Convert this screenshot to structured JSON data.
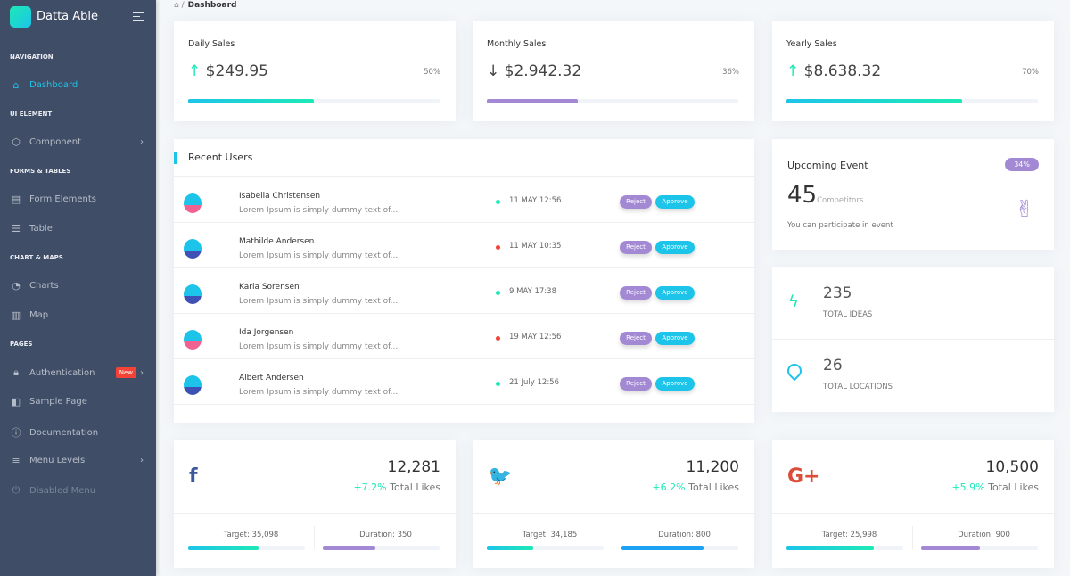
{
  "sidebar": {
    "brand": "Datta Able",
    "sections": [
      {
        "caption": "NAVIGATION",
        "items": [
          {
            "label": "Dashboard",
            "icon": "home-icon",
            "active": true
          }
        ]
      },
      {
        "caption": "UI ELEMENT",
        "items": [
          {
            "label": "Component",
            "icon": "box-icon",
            "chevron": true
          }
        ]
      },
      {
        "caption": "FORMS & TABLES",
        "items": [
          {
            "label": "Form Elements",
            "icon": "file-text-icon"
          },
          {
            "label": "Table",
            "icon": "server-icon"
          }
        ]
      },
      {
        "caption": "CHART & MAPS",
        "items": [
          {
            "label": "Charts",
            "icon": "pie-chart-icon"
          },
          {
            "label": "Map",
            "icon": "map-icon"
          }
        ]
      },
      {
        "caption": "PAGES",
        "items": [
          {
            "label": "Authentication",
            "icon": "lock-icon",
            "badge": "New",
            "chevron": true
          },
          {
            "label": "Sample Page",
            "icon": "sidebar-icon"
          },
          {
            "label": "Documentation",
            "icon": "help-circle-icon"
          },
          {
            "label": "Menu Levels",
            "icon": "menu-icon",
            "chevron": true
          },
          {
            "label": "Disabled Menu",
            "icon": "power-icon",
            "disabled": true
          }
        ]
      }
    ]
  },
  "breadcrumb": {
    "current": "Dashboard"
  },
  "sales": [
    {
      "title": "Daily Sales",
      "value": "$249.95",
      "trend": "up",
      "percent": "50%",
      "progress": 50,
      "color": "#1de9b6"
    },
    {
      "title": "Monthly Sales",
      "value": "$2.942.32",
      "trend": "down",
      "percent": "36%",
      "progress": 36,
      "color": "#a389d4"
    },
    {
      "title": "Yearly Sales",
      "value": "$8.638.32",
      "trend": "up",
      "percent": "70%",
      "progress": 70,
      "color": "#1de9b6"
    }
  ],
  "recent_users": {
    "title": "Recent Users",
    "reject": "Reject",
    "approve": "Approve",
    "rows": [
      {
        "name": "Isabella Christensen",
        "desc": "Lorem Ipsum is simply dummy text of...",
        "date": "11 MAY 12:56",
        "status": "#1de9b6"
      },
      {
        "name": "Mathilde Andersen",
        "desc": "Lorem Ipsum is simply dummy text of...",
        "date": "11 MAY 10:35",
        "status": "#f44236"
      },
      {
        "name": "Karla Sorensen",
        "desc": "Lorem Ipsum is simply dummy text of...",
        "date": "9 MAY 17:38",
        "status": "#1de9b6"
      },
      {
        "name": "Ida Jorgensen",
        "desc": "Lorem Ipsum is simply dummy text of...",
        "date": "19 MAY 12:56",
        "status": "#f44236"
      },
      {
        "name": "Albert Andersen",
        "desc": "Lorem Ipsum is simply dummy text of...",
        "date": "21 July 12:56",
        "status": "#1de9b6"
      }
    ]
  },
  "event": {
    "title": "Upcoming Event",
    "badge": "34%",
    "count": "45",
    "count_label": "Competitors",
    "note": "You can participate in event"
  },
  "stats": [
    {
      "value": "235",
      "label": "TOTAL IDEAS",
      "icon": "zap-icon"
    },
    {
      "value": "26",
      "label": "TOTAL LOCATIONS",
      "icon": "map-pin-icon"
    }
  ],
  "social": [
    {
      "network": "facebook",
      "icon": "f",
      "value": "12,281",
      "change": "+7.2%",
      "change_label": "Total Likes",
      "target": "Target: 35,098",
      "duration": "Duration: 350",
      "target_progress": 60,
      "duration_progress": 45,
      "color": "#3b5998"
    },
    {
      "network": "twitter",
      "icon": "🐦",
      "value": "11,200",
      "change": "+6.2%",
      "change_label": "Total Likes",
      "target": "Target: 34,185",
      "duration": "Duration: 800",
      "target_progress": 40,
      "duration_progress": 70,
      "color": "#1da1f2"
    },
    {
      "network": "google-plus",
      "icon": "G+",
      "value": "10,500",
      "change": "+5.9%",
      "change_label": "Total Likes",
      "target": "Target: 25,998",
      "duration": "Duration: 900",
      "target_progress": 75,
      "duration_progress": 50,
      "color": "#dd4b39"
    }
  ]
}
